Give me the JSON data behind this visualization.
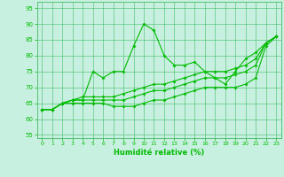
{
  "xlabel": "Humidité relative (%)",
  "xlim": [
    -0.5,
    23.5
  ],
  "ylim": [
    54,
    97
  ],
  "yticks": [
    55,
    60,
    65,
    70,
    75,
    80,
    85,
    90,
    95
  ],
  "xticks": [
    0,
    1,
    2,
    3,
    4,
    5,
    6,
    7,
    8,
    9,
    10,
    11,
    12,
    13,
    14,
    15,
    16,
    17,
    18,
    19,
    20,
    21,
    22,
    23
  ],
  "bg_color": "#c8f0e0",
  "grid_color": "#44bb66",
  "line_color": "#00bb00",
  "lines": [
    [
      63,
      63,
      65,
      66,
      66,
      75,
      73,
      75,
      75,
      83,
      90,
      88,
      80,
      77,
      77,
      78,
      75,
      73,
      71,
      75,
      79,
      81,
      84,
      86
    ],
    [
      63,
      63,
      65,
      66,
      67,
      67,
      67,
      67,
      68,
      69,
      70,
      71,
      71,
      72,
      73,
      74,
      75,
      75,
      75,
      76,
      77,
      79,
      84,
      86
    ],
    [
      63,
      63,
      65,
      66,
      66,
      66,
      66,
      66,
      66,
      67,
      68,
      69,
      69,
      70,
      71,
      72,
      73,
      73,
      73,
      74,
      75,
      77,
      84,
      86
    ],
    [
      63,
      63,
      65,
      65,
      65,
      65,
      65,
      64,
      64,
      64,
      65,
      66,
      66,
      67,
      68,
      69,
      70,
      70,
      70,
      70,
      71,
      73,
      83,
      86
    ]
  ]
}
